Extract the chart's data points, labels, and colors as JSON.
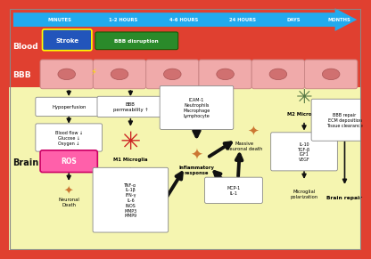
{
  "bg_top": "#E04030",
  "bg_brain": "#F5F5B0",
  "arrow_blue": "#22AAEE",
  "time_labels": [
    "MINUTES",
    "1-2 HOURS",
    "4-6 HOURS",
    "24 HOURS",
    "DAYS",
    "MONTHS"
  ],
  "blood_label": "Blood",
  "bbb_label": "BBB",
  "brain_label": "Brain",
  "stroke_text": "Stroke",
  "bbb_dis_text": "BBB disruption",
  "hypoperfusion_text": "Hypoperfusion",
  "bbb_perm_text": "BBB\npermeability ↑",
  "blood_flow_text": "Blood flow ↓\nGlucose ↓\nOxygen ↓",
  "ros_text": "ROS",
  "neuronal_death_text": "Neuronal\nDeath",
  "m1_text": "M1 Microglia",
  "tnf_text": "TNF-α\nIL-1β\nIFN-γ\nIL-6\niNOS\nMMP3\nMMP9",
  "icam_text": "ICAM-1\nNeutrophils\nMacrophage\nLymphocyte",
  "inflammatory_text": "Inflammatory\nresponse",
  "massive_text": "Massive\nneuronal death",
  "mcp_text": "MCP-1\nIL-1",
  "m2_text": "M2 Microglia",
  "il10_text": "IL-10\nTGF-β\nIGF1\nVEGF",
  "microglial_text": "Microglial\npolarization",
  "bbb_repair_text": "BBB repair\nECM deposition\nTissue clearance",
  "brain_repair_text": "Brain repair",
  "cell_pink": "#F0AAAA",
  "cell_inner": "#D07070",
  "cell_red": "#CC2222",
  "cell_orange": "#CC7733",
  "cell_green": "#557744",
  "lightning_color": "#FFDD00",
  "stroke_bg": "#2255BB",
  "stroke_border": "#FFFF00",
  "green_bg": "#2A8A2A",
  "pink_ros": "#FF60AA",
  "dark": "#111111",
  "white": "#FFFFFF",
  "box_ec": "#999999"
}
